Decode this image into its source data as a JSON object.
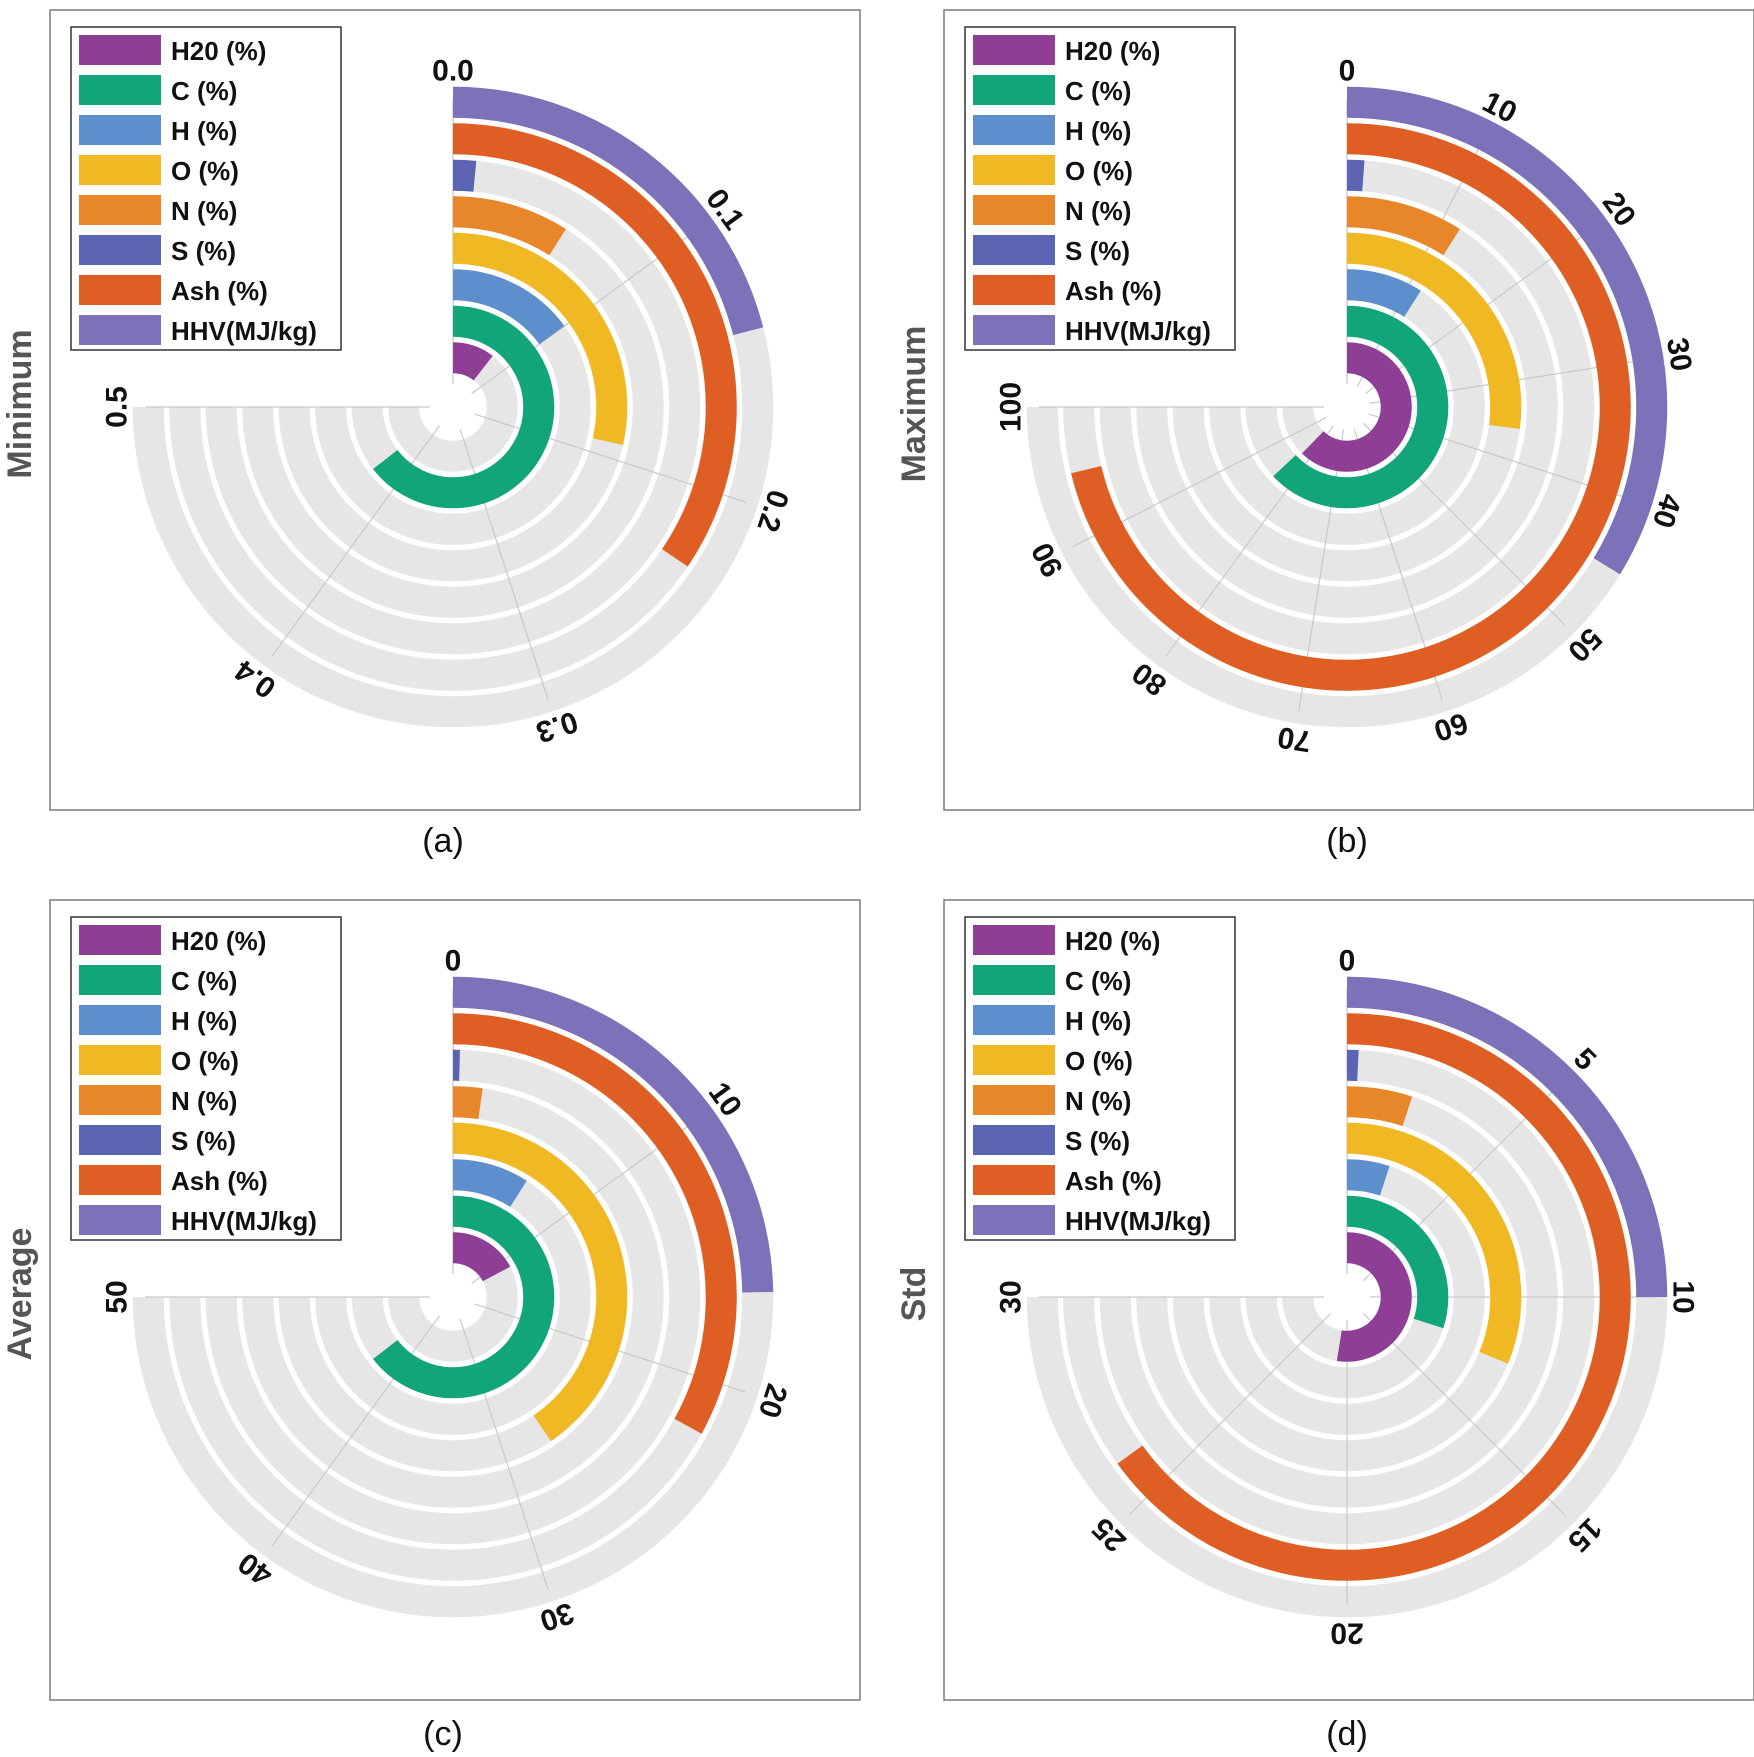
{
  "legend_labels": [
    "H20 (%)",
    "C (%)",
    "H (%)",
    "O (%)",
    "N (%)",
    "S (%)",
    "Ash (%)",
    "HHV(MJ/kg)"
  ],
  "colors": {
    "H20 (%)": "#8e3f95",
    "C (%)": "#13a57a",
    "H (%)": "#5d8fcd",
    "O (%)": "#f0b823",
    "N (%)": "#e8862a",
    "S (%)": "#5a64b3",
    "Ash (%)": "#df5e24",
    "HHV(MJ/kg)": "#7b72b9"
  },
  "chart_data": [
    {
      "type": "radial-bar",
      "caption": "(a)",
      "ylabel": "Minimum",
      "axis_max": 0.5,
      "ticks": [
        0.0,
        0.1,
        0.2,
        0.3,
        0.4,
        0.5
      ],
      "tick_labels": [
        "0.0",
        "0.1",
        "0.2",
        "0.3",
        "0.4",
        "0.5"
      ],
      "series": [
        {
          "name": "H20 (%)",
          "value": 0.07
        },
        {
          "name": "C (%)",
          "value": 0.43
        },
        {
          "name": "H (%)",
          "value": 0.1
        },
        {
          "name": "O (%)",
          "value": 0.19
        },
        {
          "name": "N (%)",
          "value": 0.06
        },
        {
          "name": "S (%)",
          "value": 0.01
        },
        {
          "name": "Ash (%)",
          "value": 0.23
        },
        {
          "name": "HHV(MJ/kg)",
          "value": 0.14
        }
      ]
    },
    {
      "type": "radial-bar",
      "caption": "(b)",
      "ylabel": "Maximum",
      "axis_max": 100,
      "ticks": [
        0,
        10,
        20,
        30,
        40,
        50,
        60,
        70,
        80,
        90,
        100
      ],
      "tick_labels": [
        "0",
        "10",
        "20",
        "30",
        "40",
        "50",
        "60",
        "70",
        "80",
        "90",
        "100"
      ],
      "series": [
        {
          "name": "H20 (%)",
          "value": 83
        },
        {
          "name": "C (%)",
          "value": 84
        },
        {
          "name": "H (%)",
          "value": 12
        },
        {
          "name": "O (%)",
          "value": 36
        },
        {
          "name": "N (%)",
          "value": 12
        },
        {
          "name": "S (%)",
          "value": 1.5
        },
        {
          "name": "Ash (%)",
          "value": 95
        },
        {
          "name": "HHV(MJ/kg)",
          "value": 45
        }
      ]
    },
    {
      "type": "radial-bar",
      "caption": "(c)",
      "ylabel": "Average",
      "axis_max": 50,
      "ticks": [
        0,
        10,
        20,
        30,
        40,
        50
      ],
      "tick_labels": [
        "0",
        "10",
        "20",
        "30",
        "40",
        "50"
      ],
      "series": [
        {
          "name": "H20 (%)",
          "value": 11.5
        },
        {
          "name": "C (%)",
          "value": 43
        },
        {
          "name": "H (%)",
          "value": 6
        },
        {
          "name": "O (%)",
          "value": 27
        },
        {
          "name": "N (%)",
          "value": 1.5
        },
        {
          "name": "S (%)",
          "value": 0.3
        },
        {
          "name": "Ash (%)",
          "value": 22
        },
        {
          "name": "HHV(MJ/kg)",
          "value": 16.5
        }
      ]
    },
    {
      "type": "radial-bar",
      "caption": "(d)",
      "ylabel": "Std",
      "axis_max": 30,
      "ticks": [
        0,
        5,
        10,
        15,
        20,
        25,
        30
      ],
      "tick_labels": [
        "0",
        "5",
        "10",
        "15",
        "20",
        "25",
        "30"
      ],
      "series": [
        {
          "name": "H20 (%)",
          "value": 21
        },
        {
          "name": "C (%)",
          "value": 12
        },
        {
          "name": "H (%)",
          "value": 2
        },
        {
          "name": "O (%)",
          "value": 12.5
        },
        {
          "name": "N (%)",
          "value": 2
        },
        {
          "name": "S (%)",
          "value": 0.3
        },
        {
          "name": "Ash (%)",
          "value": 26
        },
        {
          "name": "HHV(MJ/kg)",
          "value": 10
        }
      ]
    }
  ]
}
